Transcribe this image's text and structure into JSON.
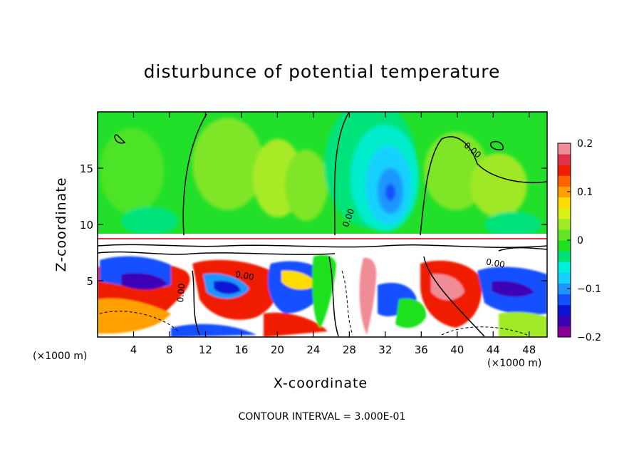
{
  "chart_data": {
    "type": "heatmap",
    "title": "disturbunce of potential temperature",
    "xlabel": "X-coordinate",
    "ylabel": "Z-coordinate",
    "x_unit": "(×1000 m)",
    "xlim": [
      0,
      50
    ],
    "ylim": [
      0,
      20
    ],
    "x_ticks": [
      4,
      8,
      12,
      16,
      20,
      24,
      28,
      32,
      36,
      40,
      44,
      48
    ],
    "y_ticks": [
      5,
      10,
      15
    ],
    "colorbar": {
      "range": [
        -0.2,
        0.2
      ],
      "ticks": [
        0.2,
        0.1,
        0,
        -0.1,
        -0.2
      ],
      "tick_labels": [
        "0.2",
        "0.1",
        "0",
        "−0.1",
        "−0.2"
      ],
      "colors": [
        "#8a0097",
        "#3c00b4",
        "#0a14d2",
        "#1450ff",
        "#1e96ff",
        "#14d2ff",
        "#00f0dc",
        "#00e178",
        "#1ee11e",
        "#64e628",
        "#a0eb28",
        "#dcf014",
        "#ffdc00",
        "#ffa000",
        "#ff6400",
        "#f01e00",
        "#e1324b",
        "#f08c96"
      ]
    },
    "contour_labels": [
      "0.00",
      "0.00",
      "0.00",
      "0.00",
      "0.00"
    ],
    "contour_note": "CONTOUR INTERVAL = 3.000E-01"
  }
}
